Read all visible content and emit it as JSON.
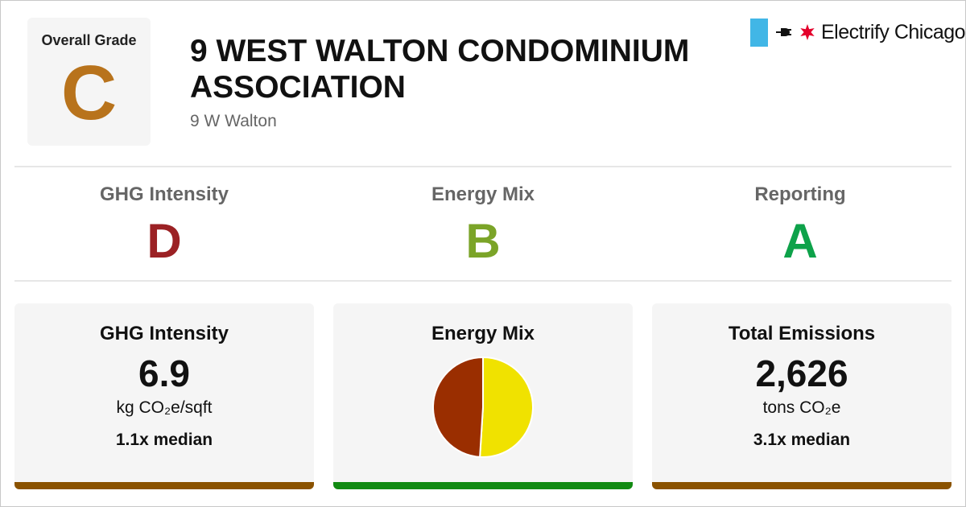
{
  "overall": {
    "label": "Overall Grade",
    "grade": "C",
    "grade_color": "#b8731c"
  },
  "building": {
    "name": "9 WEST WALTON CONDOMINIUM ASSOCIATION",
    "address": "9 W Walton"
  },
  "logo": {
    "text": "Electrify Chicago",
    "flag_color": "#41b6e6",
    "star_color": "#e4002b"
  },
  "subgrades": [
    {
      "name": "GHG Intensity",
      "grade": "D",
      "color": "#9b2124"
    },
    {
      "name": "Energy Mix",
      "grade": "B",
      "color": "#7ba428"
    },
    {
      "name": "Reporting",
      "grade": "A",
      "color": "#0ea24a"
    }
  ],
  "cards": {
    "ghg": {
      "title": "GHG Intensity",
      "value": "6.9",
      "unit": "kg CO₂e/sqft",
      "median": "1.1x median",
      "bar_color": "#8a5200"
    },
    "mix": {
      "title": "Energy Mix",
      "bar_color": "#118a12",
      "pie": [
        {
          "share": 0.51,
          "color": "#f0e200"
        },
        {
          "share": 0.49,
          "color": "#9a2e00"
        }
      ]
    },
    "total": {
      "title": "Total Emissions",
      "value": "2,626",
      "unit": "tons CO₂e",
      "median": "3.1x median",
      "bar_color": "#8a5200"
    }
  }
}
